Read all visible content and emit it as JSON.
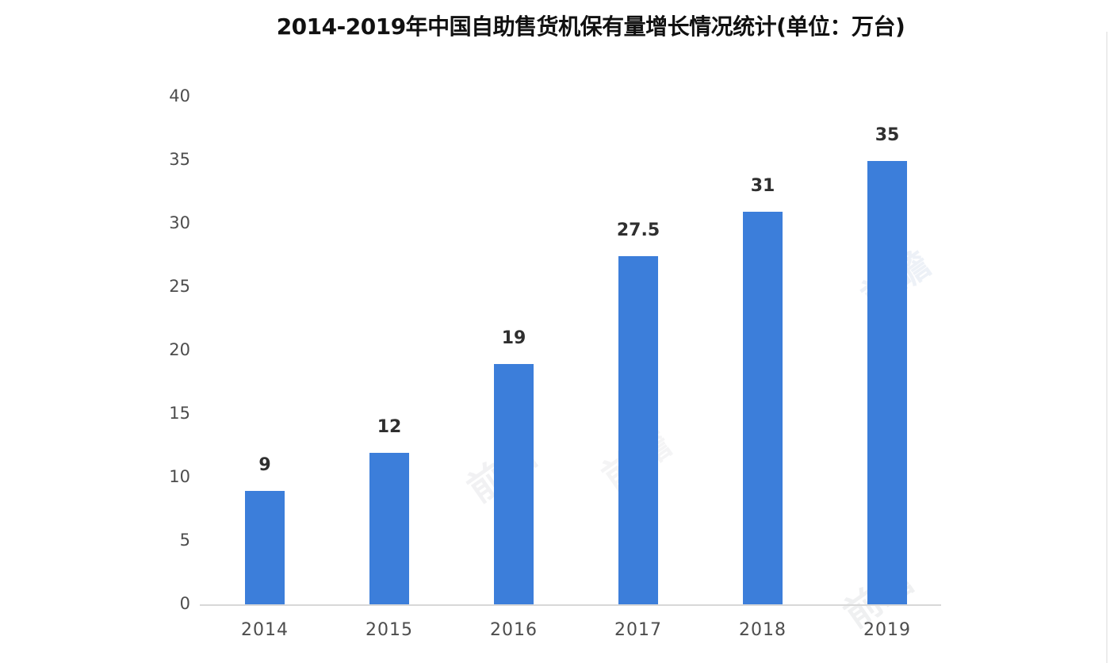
{
  "page": {
    "background": "#ffffff"
  },
  "chart_data": {
    "type": "bar",
    "title": "2014-2019年中国自助售货机保有量增长情况统计(单位：万台)",
    "categories": [
      "2014",
      "2015",
      "2016",
      "2017",
      "2018",
      "2019"
    ],
    "values": [
      9,
      12,
      19,
      27.5,
      31,
      35
    ],
    "value_labels": [
      "9",
      "12",
      "19",
      "27.5",
      "31",
      "35"
    ],
    "y_ticks": [
      0,
      5,
      10,
      15,
      20,
      25,
      30,
      35,
      40
    ],
    "ylim": [
      0,
      40
    ],
    "xlabel": "",
    "ylabel": "",
    "grid": false,
    "legend_position": "none",
    "bar_color": "#3c7eda",
    "axis_line_color": "#d8d8d8",
    "tick_label_color": "#4d4d4d",
    "value_label_color": "#2f2f2f",
    "title_color": "#111111"
  },
  "watermark": {
    "text": "前瞻"
  }
}
